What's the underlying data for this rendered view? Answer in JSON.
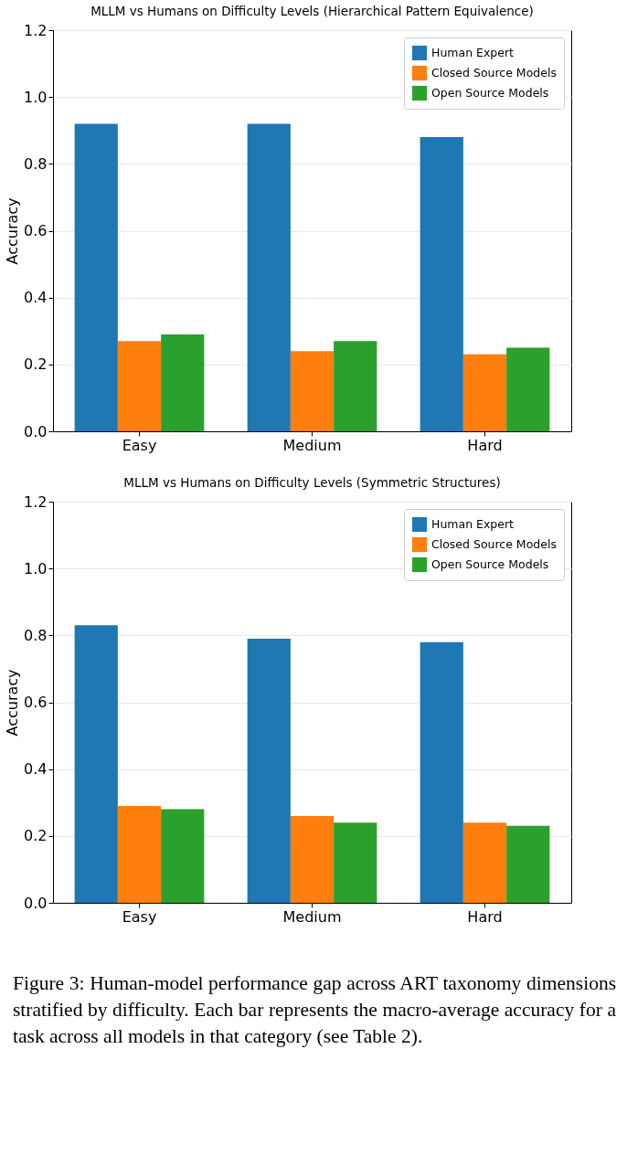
{
  "chart_data": [
    {
      "type": "bar",
      "title": "MLLM vs Humans on Difficulty Levels (Hierarchical Pattern Equivalence)",
      "ylabel": "Accuracy",
      "categories": [
        "Easy",
        "Medium",
        "Hard"
      ],
      "series": [
        {
          "name": "Human Expert",
          "color": "#1f77b4",
          "values": [
            0.92,
            0.92,
            0.88
          ]
        },
        {
          "name": "Closed Source Models",
          "color": "#ff7f0e",
          "values": [
            0.27,
            0.24,
            0.23
          ]
        },
        {
          "name": "Open Source Models",
          "color": "#2ca02c",
          "values": [
            0.29,
            0.27,
            0.25
          ]
        }
      ],
      "ylim": [
        0,
        1.2
      ],
      "yticks": [
        {
          "value": 0,
          "label": "0.0"
        },
        {
          "value": 0.2,
          "label": "0.2"
        },
        {
          "value": 0.4,
          "label": "0.4"
        },
        {
          "value": 0.6,
          "label": "0.6"
        },
        {
          "value": 0.8,
          "label": "0.8"
        },
        {
          "value": 1,
          "label": "1.0"
        },
        {
          "value": 1.2,
          "label": "1.2"
        }
      ],
      "grid": "y",
      "legend": "top right"
    },
    {
      "type": "bar",
      "title": "MLLM vs Humans on Difficulty Levels (Symmetric Structures)",
      "ylabel": "Accuracy",
      "categories": [
        "Easy",
        "Medium",
        "Hard"
      ],
      "series": [
        {
          "name": "Human Expert",
          "color": "#1f77b4",
          "values": [
            0.83,
            0.79,
            0.78
          ]
        },
        {
          "name": "Closed Source Models",
          "color": "#ff7f0e",
          "values": [
            0.29,
            0.26,
            0.24
          ]
        },
        {
          "name": "Open Source Models",
          "color": "#2ca02c",
          "values": [
            0.28,
            0.24,
            0.23
          ]
        }
      ],
      "ylim": [
        0,
        1.2
      ],
      "yticks": [
        {
          "value": 0,
          "label": "0.0"
        },
        {
          "value": 0.2,
          "label": "0.2"
        },
        {
          "value": 0.4,
          "label": "0.4"
        },
        {
          "value": 0.6,
          "label": "0.6"
        },
        {
          "value": 0.8,
          "label": "0.8"
        },
        {
          "value": 1,
          "label": "1.0"
        },
        {
          "value": 1.2,
          "label": "1.2"
        }
      ],
      "grid": "y",
      "legend": "top right",
      "annotations": [
        "Figure 3: Human-model performance gap across ART taxonomy dimensions stratified by difficulty. Each bar represents the macro-average accuracy for a task across all models in that category (see Table 2)."
      ]
    }
  ]
}
